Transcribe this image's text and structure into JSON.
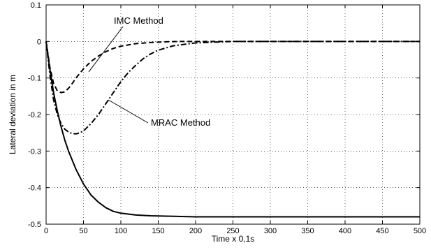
{
  "chart_data": {
    "type": "line",
    "xlabel": "Time x 0,1s",
    "ylabel": "Lateral deviation in m",
    "xlim": [
      0,
      500
    ],
    "ylim": [
      -0.5,
      0.1
    ],
    "xticks": [
      0,
      50,
      100,
      150,
      200,
      250,
      300,
      350,
      400,
      450,
      500
    ],
    "yticks": [
      0.1,
      0,
      -0.1,
      -0.2,
      -0.3,
      -0.4,
      -0.5
    ],
    "xtick_labels": [
      "0",
      "50",
      "100",
      "150",
      "200",
      "250",
      "300",
      "350",
      "400",
      "450",
      "500"
    ],
    "ytick_labels": [
      "0.1",
      "0",
      "-0.1",
      "-0.2",
      "-0.3",
      "-0.4",
      "-0.5"
    ],
    "grid": true,
    "annotations": [
      {
        "text": "IMC Method",
        "target_series": 1
      },
      {
        "text": "MRAC Method",
        "target_series": 2
      }
    ],
    "series": [
      {
        "style": "solid",
        "color": "#000000",
        "x": [
          0,
          5,
          10,
          15,
          20,
          25,
          30,
          40,
          50,
          60,
          70,
          80,
          90,
          100,
          120,
          140,
          160,
          180,
          200,
          250,
          300,
          350,
          400,
          450,
          500
        ],
        "y": [
          0,
          -0.075,
          -0.14,
          -0.19,
          -0.233,
          -0.27,
          -0.3,
          -0.35,
          -0.39,
          -0.42,
          -0.44,
          -0.455,
          -0.465,
          -0.47,
          -0.475,
          -0.477,
          -0.478,
          -0.479,
          -0.48,
          -0.48,
          -0.48,
          -0.48,
          -0.48,
          -0.48,
          -0.48
        ]
      },
      {
        "style": "dashed",
        "color": "#000000",
        "x": [
          0,
          5,
          10,
          15,
          20,
          25,
          30,
          35,
          40,
          50,
          60,
          70,
          80,
          90,
          100,
          120,
          140,
          160,
          180,
          200,
          250,
          300,
          350,
          400,
          450,
          500
        ],
        "y": [
          0,
          -0.07,
          -0.115,
          -0.135,
          -0.14,
          -0.138,
          -0.128,
          -0.115,
          -0.1,
          -0.075,
          -0.055,
          -0.04,
          -0.028,
          -0.019,
          -0.013,
          -0.006,
          -0.003,
          -0.001,
          0,
          0,
          0,
          0,
          0,
          0,
          0,
          0
        ]
      },
      {
        "style": "dashdot",
        "color": "#000000",
        "x": [
          0,
          5,
          10,
          15,
          20,
          25,
          30,
          35,
          40,
          45,
          50,
          60,
          70,
          80,
          90,
          100,
          110,
          120,
          130,
          140,
          150,
          170,
          200,
          250,
          300,
          350,
          400,
          450,
          500
        ],
        "y": [
          0,
          -0.09,
          -0.16,
          -0.2,
          -0.225,
          -0.24,
          -0.248,
          -0.252,
          -0.253,
          -0.25,
          -0.245,
          -0.225,
          -0.2,
          -0.17,
          -0.14,
          -0.11,
          -0.085,
          -0.065,
          -0.047,
          -0.034,
          -0.024,
          -0.012,
          -0.004,
          0,
          0,
          0,
          0,
          0,
          0
        ]
      }
    ]
  }
}
